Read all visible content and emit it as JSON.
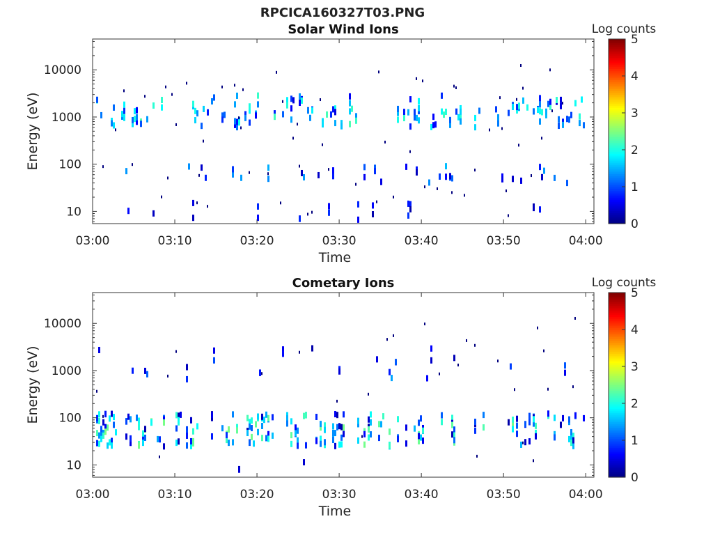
{
  "figure_title": "RPCICA160327T03.PNG",
  "colors": {
    "colormap": [
      "#00007f",
      "#0000ff",
      "#007fff",
      "#00ffff",
      "#7fff7f",
      "#ffff00",
      "#ff7f00",
      "#ff0000",
      "#7f0000"
    ]
  },
  "chart_data": [
    {
      "type": "heatmap",
      "title": "Solar Wind Ions",
      "xlabel": "Time",
      "ylabel": "Energy (eV)",
      "x_range": [
        "03:00",
        "04:01"
      ],
      "x_ticks": [
        "03:00",
        "03:10",
        "03:20",
        "03:30",
        "03:40",
        "03:50",
        "04:00"
      ],
      "y_scale": "log",
      "y_range": [
        5.5,
        45000
      ],
      "y_ticks": [
        "10",
        "100",
        "1000",
        "10000"
      ],
      "colorbar": {
        "label": "Log counts",
        "range": [
          0,
          5
        ],
        "ticks": [
          "0",
          "1",
          "2",
          "3",
          "4",
          "5"
        ]
      },
      "bands": [
        {
          "center_energy": 900,
          "value_range": [
            0.6,
            2.3
          ]
        },
        {
          "center_energy": 1900,
          "value_range": [
            0.4,
            2.2
          ]
        },
        {
          "center_energy": 60,
          "value_range": [
            0.3,
            1.6
          ]
        },
        {
          "center_energy": 10,
          "value_range": [
            0.2,
            0.9
          ]
        }
      ]
    },
    {
      "type": "heatmap",
      "title": "Cometary Ions",
      "xlabel": "Time",
      "ylabel": "Energy (eV)",
      "x_range": [
        "03:00",
        "04:01"
      ],
      "x_ticks": [
        "03:00",
        "03:10",
        "03:20",
        "03:30",
        "03:40",
        "03:50",
        "04:00"
      ],
      "y_scale": "log",
      "y_range": [
        5.5,
        45000
      ],
      "y_ticks": [
        "10",
        "100",
        "1000",
        "10000"
      ],
      "colorbar": {
        "label": "Log counts",
        "range": [
          0,
          5
        ],
        "ticks": [
          "0",
          "1",
          "2",
          "3",
          "4",
          "5"
        ]
      },
      "bands": [
        {
          "center_energy": 55,
          "value_range": [
            0.2,
            2.5
          ]
        },
        {
          "center_energy": 900,
          "value_range": [
            0.2,
            1.6
          ]
        },
        {
          "center_energy": 2000,
          "value_range": [
            0.2,
            1.2
          ]
        },
        {
          "center_energy": 10,
          "value_range": [
            0.1,
            0.6
          ]
        }
      ]
    }
  ]
}
